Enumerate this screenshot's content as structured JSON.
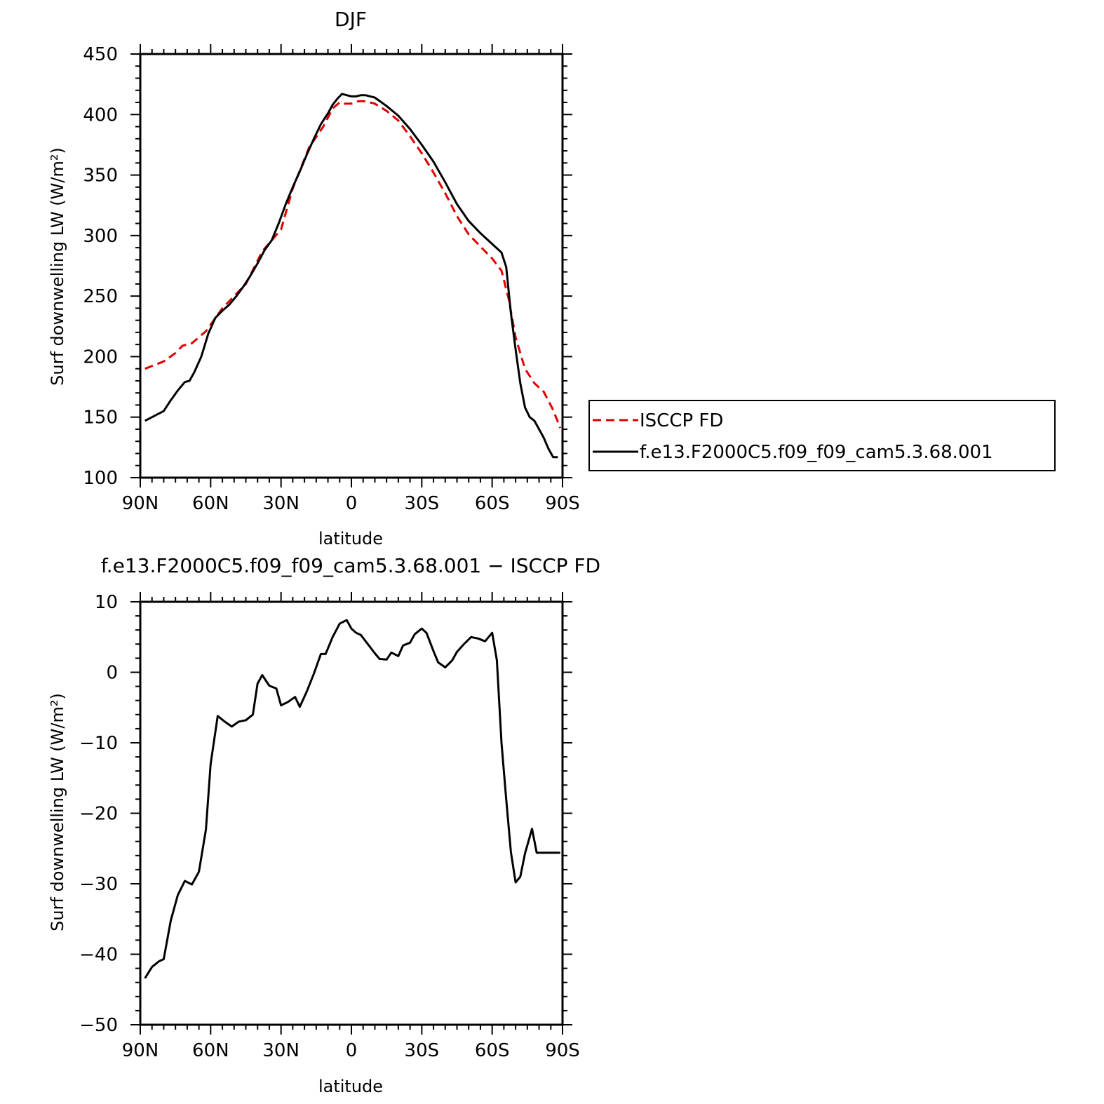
{
  "chart_data": [
    {
      "type": "line",
      "title": "DJF",
      "xlabel": "latitude",
      "ylabel": "Surf downwelling LW (W/m²)",
      "xlim": [
        90,
        -90
      ],
      "ylim": [
        100,
        450
      ],
      "x_ticks": [
        90,
        60,
        30,
        0,
        -30,
        -60,
        -90
      ],
      "x_tick_labels": [
        "90N",
        "60N",
        "30N",
        "0",
        "30S",
        "60S",
        "90S"
      ],
      "y_ticks": [
        100,
        150,
        200,
        250,
        300,
        350,
        400,
        450
      ],
      "y_tick_labels": [
        "100",
        "150",
        "200",
        "250",
        "300",
        "350",
        "400",
        "450"
      ],
      "legend_position": "right",
      "series": [
        {
          "name": "ISCCP FD",
          "color": "#e00000",
          "dash": "dashed",
          "x": [
            88,
            80,
            75,
            72,
            68,
            62,
            55,
            45,
            38,
            30,
            25,
            18,
            12,
            8,
            5,
            3,
            0,
            -3,
            -6,
            -10,
            -15,
            -20,
            -25,
            -30,
            -35,
            -40,
            -45,
            -50,
            -55,
            -60,
            -64,
            -67,
            -70,
            -74,
            -78,
            -82,
            -86,
            -89
          ],
          "y": [
            190,
            196,
            203,
            209,
            211,
            221,
            240,
            260,
            287,
            305,
            339,
            373,
            390,
            405,
            410,
            409,
            409,
            411,
            411,
            409,
            403,
            395,
            382,
            368,
            352,
            335,
            316,
            301,
            291,
            281,
            271,
            248,
            216,
            190,
            178,
            171,
            156,
            141
          ]
        },
        {
          "name": "f.e13.F2000C5.f09_f09_cam5.3.68.001",
          "color": "#000000",
          "dash": "solid",
          "x": [
            88,
            80,
            77,
            74,
            71,
            69,
            67,
            64,
            61,
            58,
            55,
            52,
            49,
            46,
            43,
            40,
            37,
            34,
            31,
            28,
            25,
            22,
            19,
            16,
            13,
            10,
            8,
            6,
            4,
            2,
            0,
            -2,
            -4,
            -6,
            -8,
            -10,
            -15,
            -20,
            -25,
            -30,
            -35,
            -40,
            -45,
            -50,
            -55,
            -60,
            -64,
            -66,
            -68,
            -70,
            -72,
            -74,
            -76,
            -78,
            -80,
            -82,
            -84,
            -86,
            -88
          ],
          "y": [
            147,
            155,
            164,
            172,
            179,
            180,
            187,
            200,
            219,
            232,
            238,
            243,
            250,
            258,
            267,
            277,
            288,
            296,
            310,
            326,
            340,
            353,
            367,
            380,
            392,
            401,
            408,
            413,
            417,
            416,
            415,
            415,
            416,
            416,
            415,
            414,
            407,
            399,
            388,
            375,
            361,
            344,
            326,
            312,
            302,
            293,
            286,
            274,
            236,
            206,
            178,
            158,
            150,
            147,
            140,
            133,
            124,
            117,
            117
          ]
        }
      ]
    },
    {
      "type": "line",
      "title": "f.e13.F2000C5.f09_f09_cam5.3.68.001 − ISCCP FD",
      "xlabel": "latitude",
      "ylabel": "Surf downwelling LW (W/m²)",
      "xlim": [
        90,
        -90
      ],
      "ylim": [
        -50,
        10
      ],
      "x_ticks": [
        90,
        60,
        30,
        0,
        -30,
        -60,
        -90
      ],
      "x_tick_labels": [
        "90N",
        "60N",
        "30N",
        "0",
        "30S",
        "60S",
        "90S"
      ],
      "y_ticks": [
        -50,
        -40,
        -30,
        -20,
        -10,
        0,
        10
      ],
      "y_tick_labels": [
        "−50",
        "−40",
        "−30",
        "−20",
        "−10",
        "0",
        "10"
      ],
      "series": [
        {
          "name": "",
          "color": "#000000",
          "dash": "solid",
          "x": [
            88,
            85,
            82,
            80,
            77,
            74,
            71,
            68,
            65,
            62,
            60,
            57,
            54,
            51,
            48,
            45,
            42,
            40,
            38,
            35,
            32,
            30,
            27,
            24,
            22,
            19,
            16,
            13,
            11,
            8,
            5,
            2,
            0,
            -2,
            -4,
            -7,
            -10,
            -12,
            -15,
            -17,
            -20,
            -22,
            -25,
            -27,
            -30,
            -32,
            -35,
            -37,
            -40,
            -43,
            -45,
            -48,
            -51,
            -54,
            -57,
            -60,
            -62,
            -64,
            -66,
            -68,
            -70,
            -72,
            -74,
            -77,
            -79,
            -82,
            -85,
            -87,
            -89
          ],
          "y": [
            -43.4,
            -41.8,
            -41.0,
            -40.7,
            -35.2,
            -31.6,
            -29.6,
            -30.1,
            -28.3,
            -22.3,
            -13.0,
            -6.2,
            -7.0,
            -7.7,
            -7.0,
            -6.8,
            -6.0,
            -1.6,
            -0.4,
            -1.9,
            -2.3,
            -4.7,
            -4.2,
            -3.5,
            -4.9,
            -2.7,
            -0.2,
            2.6,
            2.6,
            5.0,
            6.9,
            7.4,
            6.2,
            5.6,
            5.3,
            4.0,
            2.7,
            1.9,
            1.8,
            2.8,
            2.3,
            3.8,
            4.2,
            5.4,
            6.2,
            5.6,
            3.0,
            1.4,
            0.7,
            1.7,
            2.9,
            4.0,
            5.0,
            4.8,
            4.4,
            5.6,
            1.7,
            -10.0,
            -18.0,
            -25.5,
            -29.8,
            -29.0,
            -25.7,
            -22.2,
            -25.6,
            -25.6,
            -25.6,
            -25.6,
            -25.6
          ]
        }
      ]
    }
  ]
}
